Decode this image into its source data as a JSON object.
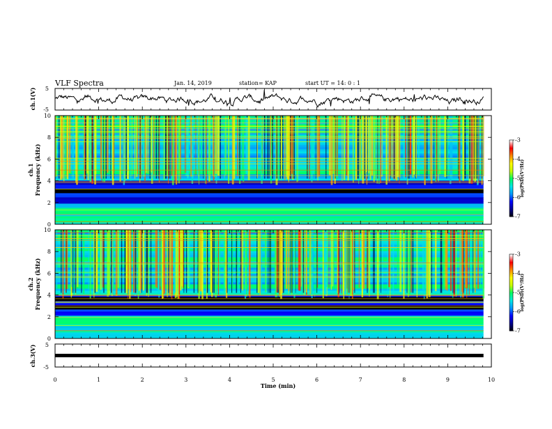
{
  "header": {
    "title": "VLF Spectra",
    "date": "Jan. 14, 2019",
    "station": "station= KAP",
    "start": "start  UT  =  14: 0  : 1"
  },
  "chart_data": [
    {
      "type": "line",
      "ylabel": "ch.1(V)",
      "ylim": [
        -5,
        5
      ],
      "y_tick_labels": [
        "5",
        "-5"
      ],
      "xlim": [
        0,
        10
      ],
      "grid": false
    },
    {
      "type": "heatmap",
      "ylabel_line1": "ch.1",
      "ylabel_line2": "Frequency  (kHz)",
      "ylim": [
        0,
        10
      ],
      "y_tick_labels": [
        "0",
        "2",
        "4",
        "6",
        "8",
        "10"
      ],
      "xlim": [
        0,
        10
      ],
      "colorbar": {
        "label": "log(PSD)(V²/Hz)",
        "tick_labels": [
          "-3",
          "-4",
          "-5",
          "-6",
          "-7"
        ],
        "range": [
          -7,
          -3
        ],
        "colors": [
          "#000000",
          "#00008b",
          "#0000ff",
          "#0096ff",
          "#00e6e6",
          "#00ff64",
          "#c8ff00",
          "#ffff00",
          "#ff8c00",
          "#ff0000",
          "#ffffff"
        ]
      },
      "dark_bands_khz": [
        [
          2.9,
          3.3
        ]
      ],
      "quiet_band_khz": [
        2.0,
        4.0
      ]
    },
    {
      "type": "heatmap",
      "ylabel_line1": "ch.2",
      "ylabel_line2": "Frequency  (kHz)",
      "ylim": [
        0,
        10
      ],
      "y_tick_labels": [
        "0",
        "2",
        "4",
        "6",
        "8",
        "10"
      ],
      "xlim": [
        0,
        10
      ],
      "colorbar": {
        "label": "log(PSD)(V²/Hz)",
        "tick_labels": [
          "-3",
          "-4",
          "-5",
          "-6",
          "-7"
        ],
        "range": [
          -7,
          -3
        ],
        "colors": [
          "#000000",
          "#00008b",
          "#0000ff",
          "#0096ff",
          "#00e6e6",
          "#00ff64",
          "#c8ff00",
          "#ffff00",
          "#ff8c00",
          "#ff0000",
          "#ffffff"
        ]
      },
      "dark_bands_khz": [
        [
          3.4,
          3.9
        ],
        [
          2.6,
          3.0
        ]
      ],
      "quiet_band_khz": [
        2.2,
        4.0
      ]
    },
    {
      "type": "line",
      "ylabel": "ch.3(V)",
      "ylim": [
        -5,
        5
      ],
      "y_tick_labels": [
        "5",
        "-5"
      ],
      "xlim": [
        0,
        10
      ],
      "constant_value": 0,
      "grid": false
    }
  ],
  "xaxis": {
    "label": "Time  (min)",
    "range": [
      0,
      10
    ],
    "tick_labels": [
      "0",
      "1",
      "2",
      "3",
      "4",
      "5",
      "6",
      "7",
      "8",
      "9",
      "10"
    ],
    "data_end_min": 9.82
  }
}
